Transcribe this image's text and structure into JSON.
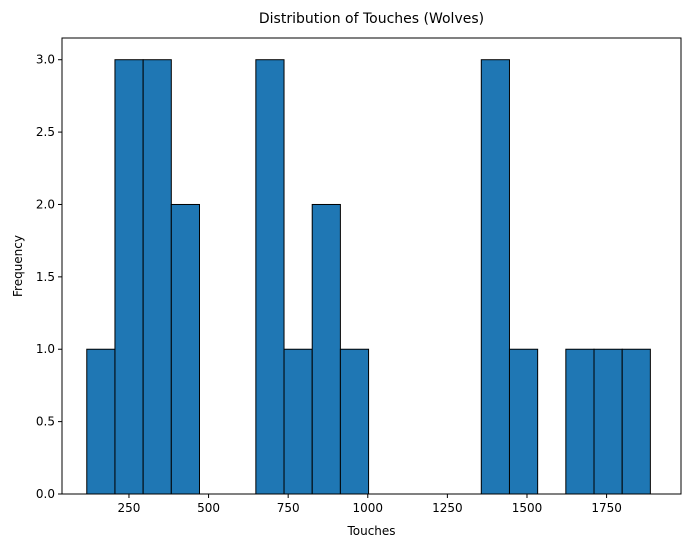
{
  "chart_data": {
    "type": "bar",
    "title": "Distribution of Touches (Wolves)",
    "xlabel": "Touches",
    "ylabel": "Frequency",
    "xlim": [
      39.7,
      1983.7
    ],
    "ylim": [
      0,
      3.15
    ],
    "bin_edges": [
      117.5,
      206.0,
      294.5,
      383.0,
      471.5,
      560.0,
      648.5,
      737.0,
      825.5,
      914.0,
      1002.5,
      1091.0,
      1179.5,
      1268.0,
      1356.5,
      1445.0,
      1533.5,
      1622.0,
      1710.5,
      1799.0,
      1887.5
    ],
    "counts": [
      1,
      3,
      3,
      2,
      0,
      0,
      3,
      1,
      2,
      1,
      0,
      0,
      0,
      0,
      3,
      1,
      0,
      1,
      1,
      1
    ],
    "x_ticks": [
      250,
      500,
      750,
      1000,
      1250,
      1500,
      1750
    ],
    "x_tick_labels": [
      "250",
      "500",
      "750",
      "1000",
      "1250",
      "1500",
      "1750"
    ],
    "y_ticks": [
      0.0,
      0.5,
      1.0,
      1.5,
      2.0,
      2.5,
      3.0
    ],
    "y_tick_labels": [
      "0.0",
      "0.5",
      "1.0",
      "1.5",
      "2.0",
      "2.5",
      "3.0"
    ],
    "bar_color": "#1f77b4",
    "edge_color": "#000000",
    "grid": false,
    "legend": "none"
  }
}
